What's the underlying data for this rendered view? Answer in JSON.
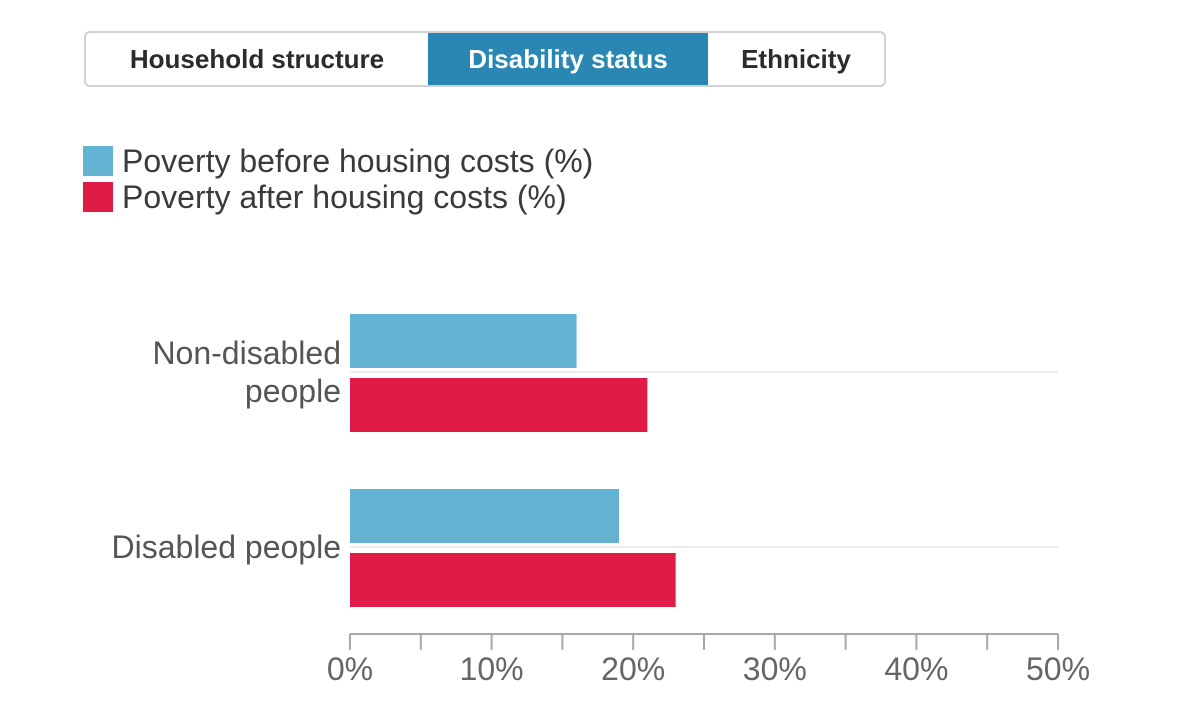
{
  "tabs": [
    {
      "label": "Household structure",
      "active": false
    },
    {
      "label": "Disability status",
      "active": true
    },
    {
      "label": "Ethnicity",
      "active": false
    }
  ],
  "colors": {
    "active_tab": "#2a86b2",
    "before_housing": "#63b2d2",
    "after_housing": "#e01c46"
  },
  "legend": {
    "before_label": "Poverty before housing costs (%)",
    "after_label": "Poverty after housing costs (%)"
  },
  "chart_data": {
    "type": "bar",
    "orientation": "horizontal",
    "categories": [
      "Non-disabled people",
      "Disabled people"
    ],
    "category_lines": [
      [
        "Non-disabled",
        "people"
      ],
      [
        "Disabled people"
      ]
    ],
    "series": [
      {
        "name": "Poverty before housing costs (%)",
        "values": [
          16,
          19
        ]
      },
      {
        "name": "Poverty after housing costs (%)",
        "values": [
          21,
          23
        ]
      }
    ],
    "xlim": [
      0,
      50
    ],
    "xticks": [
      "0%",
      "10%",
      "20%",
      "30%",
      "40%",
      "50%"
    ],
    "xtick_values": [
      0,
      10,
      20,
      30,
      40,
      50
    ],
    "legend_position": "top-left",
    "grid": false
  }
}
